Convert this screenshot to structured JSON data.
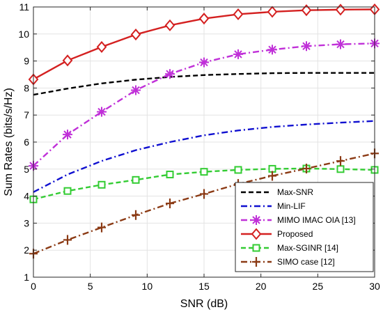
{
  "chart_data": {
    "type": "line",
    "xlabel": "SNR (dB)",
    "ylabel": "Sum Rates (bits/s/Hz)",
    "xlim": [
      0,
      30
    ],
    "ylim": [
      1,
      11
    ],
    "xticks": [
      0,
      5,
      10,
      15,
      20,
      25,
      30
    ],
    "yticks": [
      1,
      2,
      3,
      4,
      5,
      6,
      7,
      8,
      9,
      10,
      11
    ],
    "grid": true,
    "legend_position": "bottom-right",
    "series": [
      {
        "name": "Max-SNR",
        "color": "#000000",
        "line_style": "dashed",
        "marker": "none",
        "x": [
          0,
          3,
          6,
          9,
          12,
          15,
          18,
          21,
          24,
          27,
          30
        ],
        "values": [
          7.75,
          7.98,
          8.17,
          8.31,
          8.41,
          8.48,
          8.52,
          8.55,
          8.56,
          8.56,
          8.56
        ]
      },
      {
        "name": "Min-LIF",
        "color": "#1010d0",
        "line_style": "dashdot",
        "marker": "none",
        "x": [
          0,
          3,
          6,
          9,
          12,
          15,
          18,
          21,
          24,
          27,
          30
        ],
        "values": [
          4.15,
          4.8,
          5.3,
          5.7,
          6.0,
          6.25,
          6.43,
          6.56,
          6.65,
          6.72,
          6.78
        ]
      },
      {
        "name": "MIMO IMAC OIA [13]",
        "color": "#c030d8",
        "line_style": "dashdot",
        "marker": "asterisk",
        "x": [
          0,
          3,
          6,
          9,
          12,
          15,
          18,
          21,
          24,
          27,
          30
        ],
        "values": [
          5.12,
          6.28,
          7.12,
          7.92,
          8.52,
          8.95,
          9.25,
          9.42,
          9.55,
          9.62,
          9.65
        ]
      },
      {
        "name": "Proposed",
        "color": "#d42020",
        "line_style": "solid",
        "marker": "diamond",
        "x": [
          0,
          3,
          6,
          9,
          12,
          15,
          18,
          21,
          24,
          27,
          30
        ],
        "values": [
          8.32,
          9.02,
          9.52,
          9.98,
          10.32,
          10.57,
          10.73,
          10.82,
          10.88,
          10.9,
          10.91
        ]
      },
      {
        "name": "Max-SGINR [14]",
        "color": "#33cc33",
        "line_style": "dashed",
        "marker": "square",
        "x": [
          0,
          3,
          6,
          9,
          12,
          15,
          18,
          21,
          24,
          27,
          30
        ],
        "values": [
          3.88,
          4.19,
          4.42,
          4.6,
          4.8,
          4.9,
          4.97,
          5.01,
          5.02,
          5.0,
          4.97
        ]
      },
      {
        "name": "SIMO case [12]",
        "color": "#8b3a14",
        "line_style": "dashdot",
        "marker": "plus",
        "x": [
          0,
          3,
          6,
          9,
          12,
          15,
          18,
          21,
          24,
          27,
          30
        ],
        "values": [
          1.87,
          2.38,
          2.84,
          3.3,
          3.73,
          4.08,
          4.45,
          4.75,
          5.02,
          5.3,
          5.58
        ]
      }
    ]
  }
}
